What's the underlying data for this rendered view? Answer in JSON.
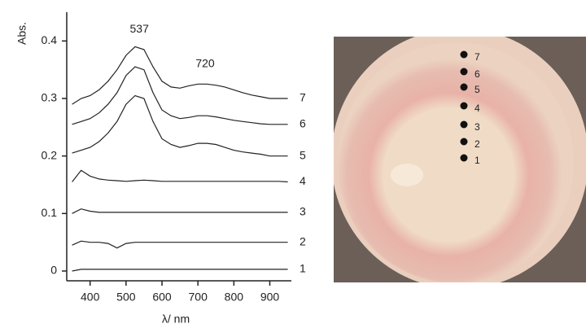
{
  "chart_data": {
    "type": "line",
    "y_label": "Abs.",
    "x_label": "λ/ nm",
    "x": [
      350,
      375,
      400,
      425,
      450,
      475,
      500,
      525,
      550,
      575,
      600,
      625,
      650,
      675,
      700,
      725,
      750,
      775,
      800,
      825,
      850,
      875,
      900,
      925,
      950
    ],
    "series": [
      {
        "name": "1",
        "color": "#222222",
        "values": [
          0.0,
          0.003,
          0.003,
          0.003,
          0.003,
          0.003,
          0.003,
          0.003,
          0.003,
          0.003,
          0.003,
          0.003,
          0.003,
          0.003,
          0.003,
          0.003,
          0.003,
          0.003,
          0.003,
          0.003,
          0.003,
          0.003,
          0.003,
          0.003,
          0.003
        ]
      },
      {
        "name": "2",
        "color": "#222222",
        "values": [
          0.045,
          0.052,
          0.05,
          0.05,
          0.048,
          0.04,
          0.048,
          0.05,
          0.05,
          0.05,
          0.05,
          0.05,
          0.05,
          0.05,
          0.05,
          0.05,
          0.05,
          0.05,
          0.05,
          0.05,
          0.05,
          0.05,
          0.05,
          0.05,
          0.05
        ]
      },
      {
        "name": "3",
        "color": "#222222",
        "values": [
          0.1,
          0.108,
          0.104,
          0.102,
          0.102,
          0.102,
          0.102,
          0.102,
          0.102,
          0.102,
          0.102,
          0.102,
          0.102,
          0.102,
          0.102,
          0.102,
          0.102,
          0.102,
          0.102,
          0.102,
          0.102,
          0.102,
          0.102,
          0.102,
          0.102
        ]
      },
      {
        "name": "4",
        "color": "#222222",
        "values": [
          0.155,
          0.175,
          0.165,
          0.16,
          0.158,
          0.157,
          0.156,
          0.157,
          0.158,
          0.157,
          0.156,
          0.156,
          0.156,
          0.156,
          0.156,
          0.156,
          0.156,
          0.156,
          0.156,
          0.156,
          0.156,
          0.156,
          0.156,
          0.156,
          0.155
        ]
      },
      {
        "name": "5",
        "color": "#222222",
        "values": [
          0.205,
          0.21,
          0.215,
          0.225,
          0.24,
          0.26,
          0.29,
          0.305,
          0.3,
          0.26,
          0.23,
          0.22,
          0.215,
          0.218,
          0.222,
          0.222,
          0.22,
          0.215,
          0.21,
          0.207,
          0.205,
          0.203,
          0.2,
          0.2,
          0.2
        ]
      },
      {
        "name": "6",
        "color": "#222222",
        "values": [
          0.255,
          0.26,
          0.265,
          0.275,
          0.29,
          0.31,
          0.34,
          0.355,
          0.35,
          0.31,
          0.28,
          0.27,
          0.265,
          0.267,
          0.27,
          0.27,
          0.268,
          0.265,
          0.262,
          0.26,
          0.258,
          0.256,
          0.255,
          0.255,
          0.255
        ]
      },
      {
        "name": "7",
        "color": "#222222",
        "values": [
          0.29,
          0.3,
          0.305,
          0.315,
          0.33,
          0.35,
          0.375,
          0.39,
          0.385,
          0.355,
          0.33,
          0.32,
          0.318,
          0.322,
          0.325,
          0.325,
          0.323,
          0.32,
          0.315,
          0.31,
          0.306,
          0.303,
          0.3,
          0.3,
          0.3
        ]
      }
    ],
    "annotations": [
      {
        "text": "537",
        "x": 537,
        "y": 0.42
      },
      {
        "text": "720",
        "x": 720,
        "y": 0.36
      }
    ],
    "xlim": [
      335,
      960
    ],
    "ylim": [
      -0.017,
      0.45
    ],
    "xticks": [
      400,
      500,
      600,
      700,
      800,
      900
    ],
    "yticks": [
      0,
      0.1,
      0.2,
      0.3,
      0.4
    ]
  },
  "photo": {
    "labels": [
      "1",
      "2",
      "3",
      "4",
      "5",
      "6",
      "7"
    ]
  }
}
